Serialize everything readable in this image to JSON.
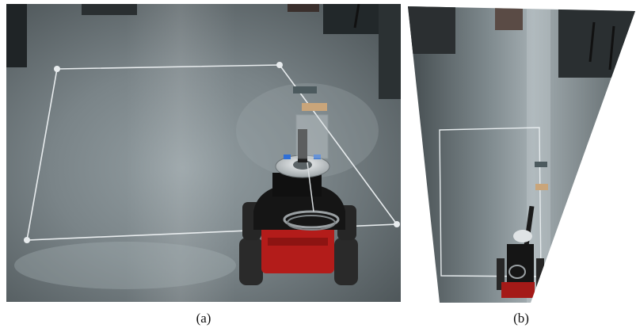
{
  "figure": {
    "captions": [
      "(a)",
      "(b)"
    ],
    "colors": {
      "floor_dark": "#4b5356",
      "floor_light": "#8c979b",
      "tape_line": "#e8ecee",
      "robot_red": "#b31c1a",
      "robot_black": "#151515",
      "wheel": "#2a2a2a",
      "mount_plate": "#d0d4d6",
      "target_tag": "#c9a57a",
      "blue_tape": "#2f6fd6"
    }
  }
}
